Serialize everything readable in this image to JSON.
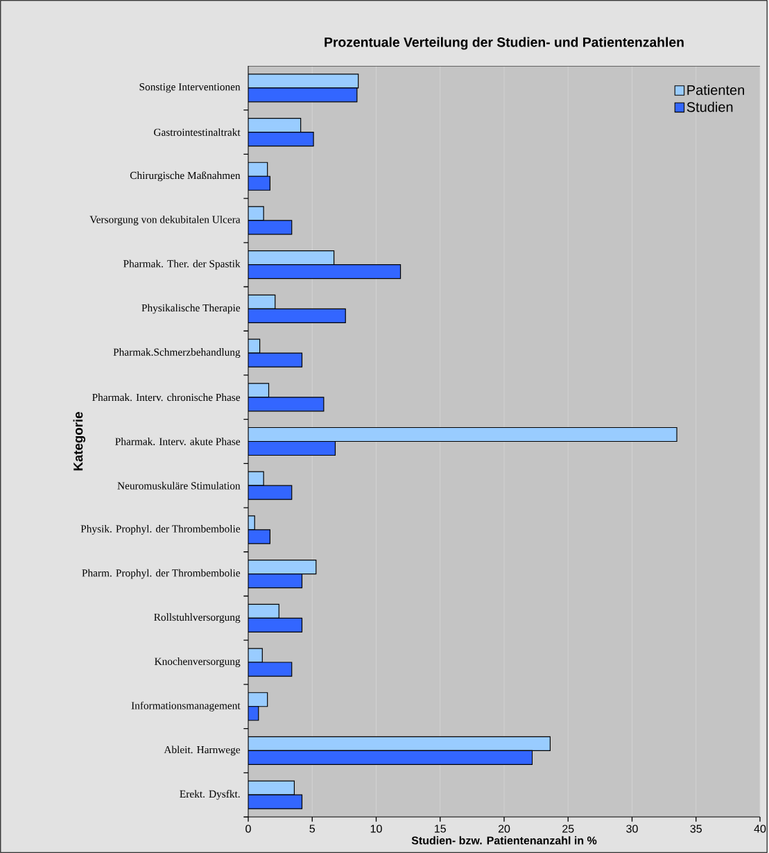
{
  "chart_data": {
    "type": "bar",
    "orientation": "horizontal",
    "title": "Prozentuale Verteilung der Studien- und Patientenzahlen",
    "xlabel": "Studien- bzw. Patientenanzahl in %",
    "ylabel": "Kategorie",
    "categories": [
      "Sonstige Interventionen",
      "Gastrointestinaltrakt",
      "Chirurgische Maßnahmen",
      "Versorgung von dekubitalen Ulcera",
      "Pharmak. Ther. der Spastik",
      "Physikalische Therapie",
      "Pharmak.Schmerzbehandlung",
      "Pharmak. Interv. chronische Phase",
      "Pharmak. Interv. akute Phase",
      "Neuromuskuläre Stimulation",
      "Physik. Prophyl. der Thrombembolie",
      "Pharm. Prophyl. der Thrombembolie",
      "Rollstuhlversorgung",
      "Knochenversorgung",
      "Informationsmanagement",
      "Ableit. Harnwege",
      "Erekt. Dysfkt."
    ],
    "series": [
      {
        "name": "Patienten",
        "color": "#99ccff",
        "values": [
          8.6,
          4.1,
          1.5,
          1.2,
          6.7,
          2.1,
          0.9,
          1.6,
          33.5,
          1.2,
          0.5,
          5.3,
          2.4,
          1.1,
          1.5,
          23.6,
          3.6
        ]
      },
      {
        "name": "Studien",
        "color": "#3366ff",
        "values": [
          8.5,
          5.1,
          1.7,
          3.4,
          11.9,
          7.6,
          4.2,
          5.9,
          6.8,
          3.4,
          1.7,
          4.2,
          4.2,
          3.4,
          0.8,
          22.2,
          4.2
        ]
      }
    ],
    "xlim": [
      0,
      40
    ],
    "xticks": [
      0,
      5,
      10,
      15,
      20,
      25,
      30,
      35,
      40
    ],
    "grid": "x",
    "legend": "top right"
  }
}
